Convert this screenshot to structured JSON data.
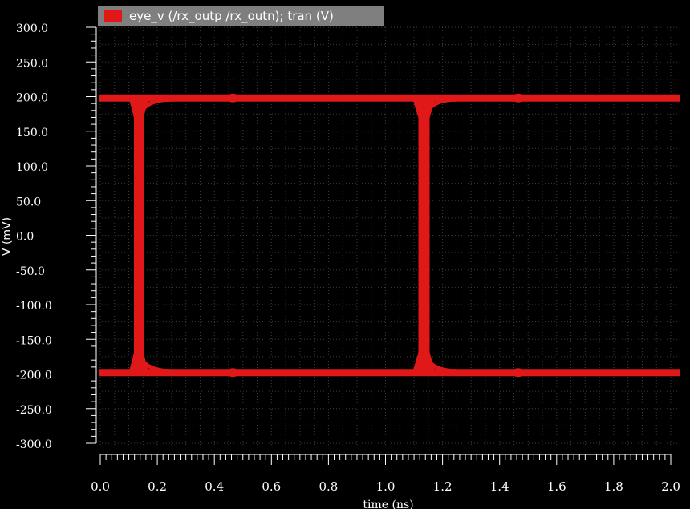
{
  "chart_data": {
    "type": "line",
    "legend": {
      "label": "eye_v (/rx_outp /rx_outn); tran (V)",
      "color": "#e01818",
      "placement": "top-left"
    },
    "xlabel": "time (ns)",
    "ylabel": "V (mV)",
    "xlim": [
      0.0,
      2.0
    ],
    "ylim": [
      -300.0,
      300.0
    ],
    "xticks": [
      0.0,
      0.2,
      0.4,
      0.6,
      0.8,
      1.0,
      1.2,
      1.4,
      1.6,
      1.8,
      2.0
    ],
    "xtick_labels": [
      "0.0",
      "0.2",
      "0.4",
      "0.6",
      "0.8",
      "1.0",
      "1.2",
      "1.4",
      "1.6",
      "1.8",
      "2.0"
    ],
    "yticks": [
      300,
      250,
      200,
      150,
      100,
      50,
      0,
      -50,
      -100,
      -150,
      -200,
      -250,
      -300
    ],
    "ytick_labels": [
      "300.0",
      "250.0",
      "200.0",
      "150.0",
      "100.0",
      "50.0",
      "0.0",
      "-50.0",
      "-100.0",
      "-150.0",
      "-200.0",
      "-250.0",
      "-300.0"
    ],
    "grid": true,
    "background": "#000000",
    "series": [
      {
        "name": "eye_v (/rx_outp /rx_outn); tran (V)",
        "color": "#e01818",
        "high_level": 198,
        "low_level": -198,
        "transitions": [
          0.135,
          1.135
        ]
      }
    ]
  }
}
